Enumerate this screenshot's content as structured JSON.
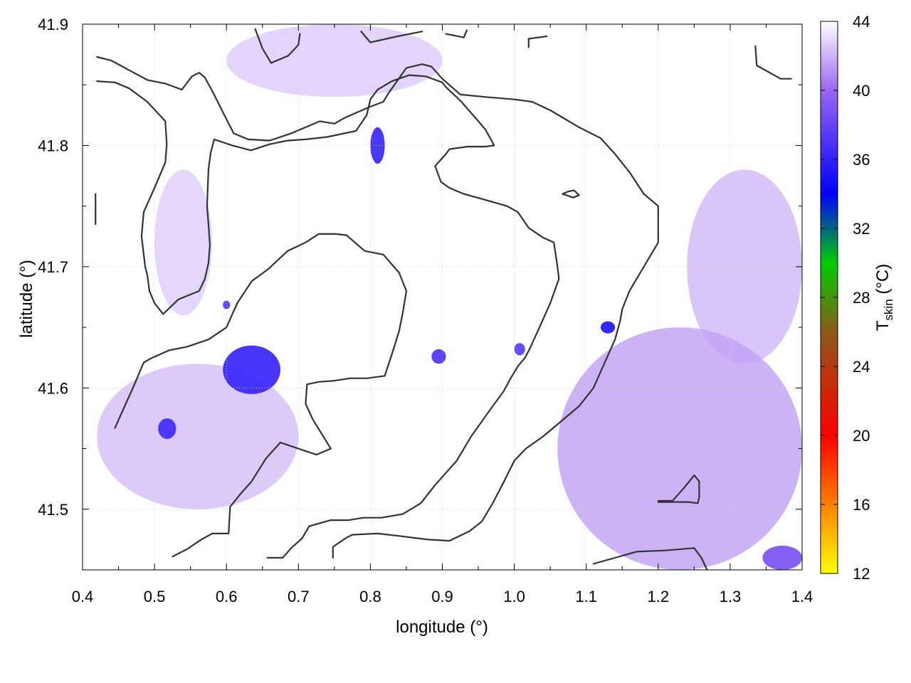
{
  "chart_data": {
    "type": "heatmap",
    "xlabel": "longitude (°)",
    "ylabel": "latitude (°)",
    "xlim": [
      0.4,
      1.4
    ],
    "ylim": [
      41.45,
      41.9
    ],
    "xticks": [
      "0.4",
      "0.5",
      "0.6",
      "0.7",
      "0.8",
      "0.9",
      "1.0",
      "1.1",
      "1.2",
      "1.3",
      "1.4"
    ],
    "yticks": [
      "41.5",
      "41.6",
      "41.7",
      "41.8",
      "41.9"
    ],
    "ytick_values": [
      41.5,
      41.6,
      41.7,
      41.8,
      41.9
    ],
    "grid": true,
    "colorbar": {
      "label_main": "T",
      "label_sub": "skin",
      "label_unit": " (°C)",
      "min": 12,
      "max": 44,
      "ticks": [
        "12",
        "16",
        "20",
        "24",
        "28",
        "32",
        "36",
        "40",
        "44"
      ],
      "tick_values": [
        12,
        16,
        20,
        24,
        28,
        32,
        36,
        40,
        44
      ],
      "stops": [
        {
          "value": 12,
          "color": "#ffff00"
        },
        {
          "value": 20,
          "color": "#ff0000"
        },
        {
          "value": 26,
          "color": "#8b5a1a"
        },
        {
          "value": 30,
          "color": "#00cc00"
        },
        {
          "value": 34,
          "color": "#0000ff"
        },
        {
          "value": 40,
          "color": "#9966ee"
        },
        {
          "value": 44,
          "color": "#ffffff"
        }
      ]
    },
    "background_value": 44,
    "field_regions": [
      {
        "kind": "warm-zone",
        "lon": [
          0.42,
          0.7
        ],
        "lat": [
          41.5,
          41.62
        ],
        "value": 41.8
      },
      {
        "kind": "warm-zone",
        "lon": [
          0.5,
          0.58
        ],
        "lat": [
          41.66,
          41.78
        ],
        "value": 42.3
      },
      {
        "kind": "warm-zone",
        "lon": [
          0.6,
          0.9
        ],
        "lat": [
          41.84,
          41.9
        ],
        "value": 42.2
      },
      {
        "kind": "warm-zone",
        "lon": [
          1.06,
          1.4
        ],
        "lat": [
          41.45,
          41.65
        ],
        "value": 40.8
      },
      {
        "kind": "warm-zone",
        "lon": [
          1.24,
          1.4
        ],
        "lat": [
          41.62,
          41.78
        ],
        "value": 41.6
      },
      {
        "kind": "hot-spot",
        "lon": [
          0.595,
          0.675
        ],
        "lat": [
          41.595,
          41.635
        ],
        "value": 36.2
      },
      {
        "kind": "hot-spot",
        "lon": [
          0.505,
          0.53
        ],
        "lat": [
          41.558,
          41.575
        ],
        "value": 36.5
      },
      {
        "kind": "hot-spot",
        "lon": [
          0.8,
          0.82
        ],
        "lat": [
          41.785,
          41.815
        ],
        "value": 36.3
      },
      {
        "kind": "hot-spot",
        "lon": [
          0.885,
          0.905
        ],
        "lat": [
          41.62,
          41.632
        ],
        "value": 37.0
      },
      {
        "kind": "hot-spot",
        "lon": [
          1.0,
          1.015
        ],
        "lat": [
          41.627,
          41.637
        ],
        "value": 37.6
      },
      {
        "kind": "hot-spot",
        "lon": [
          1.12,
          1.14
        ],
        "lat": [
          41.645,
          41.655
        ],
        "value": 35.2
      },
      {
        "kind": "hot-spot",
        "lon": [
          0.595,
          0.605
        ],
        "lat": [
          41.665,
          41.672
        ],
        "value": 37.2
      },
      {
        "kind": "hot-spot",
        "lon": [
          1.345,
          1.4
        ],
        "lat": [
          41.45,
          41.47
        ],
        "value": 38.8
      }
    ],
    "contours": [
      [
        [
          0.42,
          41.873
        ],
        [
          0.44,
          41.87
        ],
        [
          0.465,
          41.862
        ],
        [
          0.49,
          41.854
        ],
        [
          0.515,
          41.851
        ],
        [
          0.538,
          41.846
        ],
        [
          0.552,
          41.857
        ],
        [
          0.562,
          41.86
        ],
        [
          0.57,
          41.856
        ],
        [
          0.582,
          41.843
        ],
        [
          0.597,
          41.825
        ],
        [
          0.61,
          41.81
        ],
        [
          0.63,
          41.805
        ],
        [
          0.66,
          41.804
        ],
        [
          0.69,
          41.81
        ],
        [
          0.73,
          41.82
        ],
        [
          0.75,
          41.818
        ],
        [
          0.765,
          41.823
        ],
        [
          0.8,
          41.832
        ],
        [
          0.818,
          41.836
        ],
        [
          0.825,
          41.843
        ],
        [
          0.837,
          41.853
        ],
        [
          0.85,
          41.864
        ],
        [
          0.872,
          41.867
        ],
        [
          0.885,
          41.865
        ],
        [
          0.9,
          41.855
        ],
        [
          0.925,
          41.842
        ],
        [
          0.96,
          41.84
        ],
        [
          1.0,
          41.838
        ],
        [
          1.025,
          41.836
        ],
        [
          1.05,
          41.829
        ],
        [
          1.09,
          41.815
        ],
        [
          1.12,
          41.806
        ],
        [
          1.14,
          41.793
        ],
        [
          1.16,
          41.778
        ],
        [
          1.18,
          41.76
        ],
        [
          1.2,
          41.75
        ],
        [
          1.2,
          41.72
        ],
        [
          1.18,
          41.7
        ],
        [
          1.16,
          41.68
        ],
        [
          1.15,
          41.665
        ],
        [
          1.147,
          41.655
        ],
        [
          1.14,
          41.64
        ],
        [
          1.125,
          41.62
        ],
        [
          1.11,
          41.6
        ],
        [
          1.09,
          41.585
        ],
        [
          1.06,
          41.57
        ],
        [
          1.04,
          41.56
        ],
        [
          1.016,
          41.55
        ],
        [
          1.0,
          41.54
        ],
        [
          0.985,
          41.522
        ],
        [
          0.97,
          41.505
        ],
        [
          0.955,
          41.49
        ],
        [
          0.938,
          41.482
        ],
        [
          0.91,
          41.474
        ],
        [
          0.88,
          41.475
        ],
        [
          0.84,
          41.478
        ],
        [
          0.81,
          41.48
        ],
        [
          0.775,
          41.479
        ],
        [
          0.768,
          41.477
        ],
        [
          0.748,
          41.469
        ],
        [
          0.748,
          41.46
        ]
      ],
      [
        [
          0.42,
          41.853
        ],
        [
          0.445,
          41.852
        ],
        [
          0.465,
          41.847
        ],
        [
          0.49,
          41.836
        ],
        [
          0.515,
          41.82
        ],
        [
          0.517,
          41.801
        ],
        [
          0.515,
          41.786
        ],
        [
          0.5,
          41.765
        ],
        [
          0.485,
          41.745
        ],
        [
          0.482,
          41.725
        ],
        [
          0.487,
          41.7
        ],
        [
          0.49,
          41.693
        ],
        [
          0.493,
          41.68
        ],
        [
          0.5,
          41.67
        ],
        [
          0.512,
          41.661
        ],
        [
          0.533,
          41.673
        ],
        [
          0.562,
          41.68
        ],
        [
          0.57,
          41.69
        ],
        [
          0.575,
          41.703
        ],
        [
          0.577,
          41.718
        ],
        [
          0.575,
          41.735
        ],
        [
          0.573,
          41.75
        ],
        [
          0.575,
          41.78
        ],
        [
          0.578,
          41.794
        ],
        [
          0.583,
          41.805
        ],
        [
          0.608,
          41.8
        ],
        [
          0.634,
          41.796
        ],
        [
          0.66,
          41.801
        ],
        [
          0.685,
          41.804
        ],
        [
          0.71,
          41.805
        ],
        [
          0.74,
          41.807
        ],
        [
          0.78,
          41.812
        ],
        [
          0.795,
          41.825
        ],
        [
          0.8,
          41.838
        ],
        [
          0.81,
          41.846
        ],
        [
          0.83,
          41.853
        ],
        [
          0.854,
          41.858
        ],
        [
          0.877,
          41.857
        ],
        [
          0.9,
          41.852
        ],
        [
          0.905,
          41.848
        ],
        [
          0.925,
          41.837
        ],
        [
          0.95,
          41.82
        ],
        [
          0.96,
          41.813
        ],
        [
          0.972,
          41.8
        ],
        [
          0.96,
          41.799
        ],
        [
          0.935,
          41.799
        ],
        [
          0.91,
          41.797
        ],
        [
          0.905,
          41.793
        ],
        [
          0.89,
          41.783
        ],
        [
          0.898,
          41.77
        ],
        [
          0.91,
          41.765
        ],
        [
          0.93,
          41.76
        ],
        [
          0.96,
          41.755
        ],
        [
          0.99,
          41.75
        ],
        [
          1.005,
          41.745
        ],
        [
          1.02,
          41.732
        ],
        [
          1.04,
          41.724
        ],
        [
          1.055,
          41.72
        ],
        [
          1.06,
          41.7
        ],
        [
          1.062,
          41.69
        ],
        [
          1.05,
          41.67
        ],
        [
          1.035,
          41.65
        ],
        [
          1.022,
          41.633
        ],
        [
          1.015,
          41.625
        ],
        [
          1.005,
          41.618
        ],
        [
          0.995,
          41.608
        ],
        [
          0.985,
          41.597
        ],
        [
          0.97,
          41.585
        ],
        [
          0.94,
          41.56
        ],
        [
          0.92,
          41.54
        ],
        [
          0.89,
          41.52
        ],
        [
          0.87,
          41.505
        ],
        [
          0.845,
          41.496
        ],
        [
          0.815,
          41.493
        ],
        [
          0.79,
          41.493
        ],
        [
          0.77,
          41.491
        ],
        [
          0.745,
          41.491
        ],
        [
          0.715,
          41.486
        ],
        [
          0.705,
          41.476
        ],
        [
          0.69,
          41.468
        ],
        [
          0.678,
          41.46
        ],
        [
          0.657,
          41.46
        ]
      ],
      [
        [
          0.445,
          41.567
        ],
        [
          0.46,
          41.587
        ],
        [
          0.47,
          41.6
        ],
        [
          0.485,
          41.621
        ],
        [
          0.497,
          41.625
        ],
        [
          0.52,
          41.631
        ],
        [
          0.545,
          41.634
        ],
        [
          0.575,
          41.64
        ],
        [
          0.6,
          41.65
        ],
        [
          0.615,
          41.67
        ],
        [
          0.635,
          41.688
        ],
        [
          0.658,
          41.698
        ],
        [
          0.685,
          41.713
        ],
        [
          0.71,
          41.72
        ],
        [
          0.728,
          41.727
        ],
        [
          0.752,
          41.727
        ],
        [
          0.767,
          41.726
        ],
        [
          0.792,
          41.713
        ],
        [
          0.818,
          41.71
        ],
        [
          0.84,
          41.695
        ],
        [
          0.85,
          41.68
        ],
        [
          0.845,
          41.662
        ],
        [
          0.84,
          41.647
        ],
        [
          0.83,
          41.628
        ],
        [
          0.82,
          41.61
        ],
        [
          0.795,
          41.608
        ],
        [
          0.772,
          41.608
        ],
        [
          0.75,
          41.606
        ],
        [
          0.728,
          41.605
        ],
        [
          0.712,
          41.603
        ],
        [
          0.71,
          41.587
        ],
        [
          0.72,
          41.574
        ],
        [
          0.745,
          41.55
        ],
        [
          0.725,
          41.545
        ],
        [
          0.7,
          41.55
        ],
        [
          0.675,
          41.555
        ],
        [
          0.655,
          41.542
        ],
        [
          0.635,
          41.523
        ],
        [
          0.62,
          41.513
        ],
        [
          0.605,
          41.502
        ],
        [
          0.603,
          41.48
        ],
        [
          0.58,
          41.48
        ],
        [
          0.565,
          41.475
        ],
        [
          0.545,
          41.467
        ],
        [
          0.525,
          41.461
        ]
      ],
      [
        [
          0.418,
          41.735
        ],
        [
          0.418,
          41.75
        ],
        [
          0.418,
          41.76
        ]
      ],
      [
        [
          0.64,
          41.896
        ],
        [
          0.65,
          41.88
        ],
        [
          0.662,
          41.868
        ],
        [
          0.686,
          41.874
        ],
        [
          0.7,
          41.883
        ],
        [
          0.702,
          41.892
        ]
      ],
      [
        [
          0.787,
          41.894
        ],
        [
          0.8,
          41.885
        ],
        [
          0.838,
          41.89
        ],
        [
          0.872,
          41.894
        ]
      ],
      [
        [
          0.905,
          41.892
        ],
        [
          0.93,
          41.889
        ],
        [
          0.934,
          41.895
        ]
      ],
      [
        [
          1.02,
          41.881
        ],
        [
          1.02,
          41.888
        ],
        [
          1.045,
          41.89
        ]
      ],
      [
        [
          1.335,
          41.882
        ],
        [
          1.337,
          41.866
        ],
        [
          1.37,
          41.855
        ],
        [
          1.385,
          41.855
        ]
      ],
      [
        [
          1.067,
          41.76
        ],
        [
          1.075,
          41.762
        ],
        [
          1.083,
          41.763
        ],
        [
          1.09,
          41.759
        ],
        [
          1.082,
          41.757
        ],
        [
          1.067,
          41.76
        ]
      ],
      [
        [
          1.2,
          41.507
        ],
        [
          1.22,
          41.507
        ],
        [
          1.235,
          41.517
        ],
        [
          1.25,
          41.528
        ],
        [
          1.257,
          41.523
        ],
        [
          1.257,
          41.51
        ],
        [
          1.255,
          41.505
        ],
        [
          1.242,
          41.506
        ],
        [
          1.22,
          41.506
        ],
        [
          1.2,
          41.506
        ]
      ],
      [
        [
          1.11,
          41.455
        ],
        [
          1.14,
          41.46
        ],
        [
          1.17,
          41.465
        ],
        [
          1.21,
          41.466
        ],
        [
          1.25,
          41.468
        ],
        [
          1.26,
          41.46
        ],
        [
          1.268,
          41.45
        ]
      ]
    ]
  }
}
